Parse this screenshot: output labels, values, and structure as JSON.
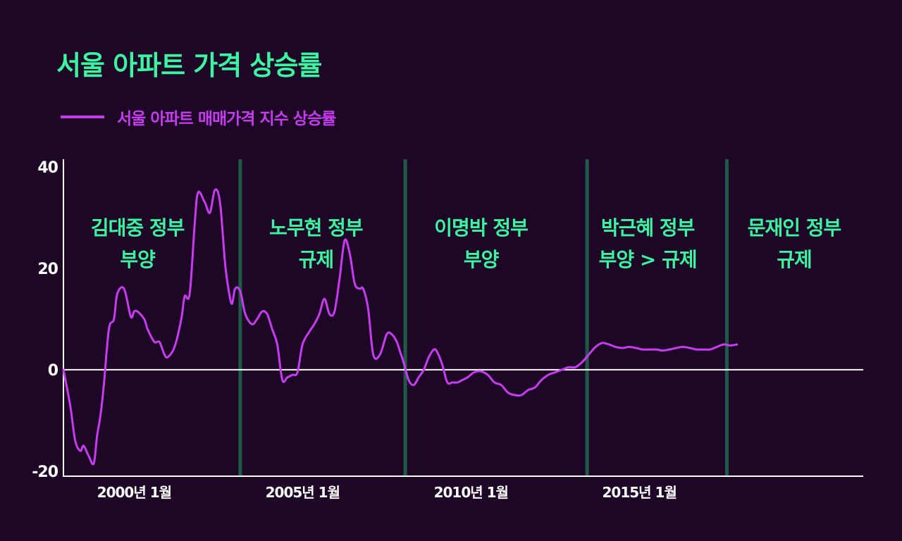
{
  "header": {
    "title": "서울 아파트 가격 상승률"
  },
  "legend": {
    "label": "서울 아파트 매매가격 지수 상승률"
  },
  "colors": {
    "background": "#1e0627",
    "accent": "#3df5a0",
    "series": "#c63df0",
    "divider": "#1f5a48",
    "axis": "#ffffff"
  },
  "chart_data": {
    "type": "line",
    "title": "서울 아파트 가격 상승률",
    "xlabel": "",
    "ylabel": "",
    "xlim": [
      1998.0,
      2021.75
    ],
    "ylim": [
      -21,
      41
    ],
    "yticks": [
      {
        "value": 40,
        "label": "40"
      },
      {
        "value": 20,
        "label": "20"
      },
      {
        "value": 0,
        "label": "0"
      },
      {
        "value": -20,
        "label": "-20"
      }
    ],
    "xticks": [
      {
        "value": 2000.1,
        "label": "2000년 1월"
      },
      {
        "value": 2005.1,
        "label": "2005년 1월"
      },
      {
        "value": 2010.1,
        "label": "2010년 1월"
      },
      {
        "value": 2015.1,
        "label": "2015년 1월"
      }
    ],
    "grid": false,
    "legend_position": "top-left",
    "dividers": [
      2003.25,
      2008.15,
      2013.55,
      2017.7
    ],
    "eras": [
      {
        "x": 2000.2,
        "line1": "김대중 정부",
        "line2": "부양"
      },
      {
        "x": 2005.5,
        "line1": "노무현 정부",
        "line2": "규제"
      },
      {
        "x": 2010.4,
        "line1": "이명박 정부",
        "line2": "부양"
      },
      {
        "x": 2015.35,
        "line1": "박근혜 정부",
        "line2": "부양 > 규제"
      },
      {
        "x": 2019.7,
        "line1": "문재인 정부",
        "line2": "규제"
      }
    ],
    "series": [
      {
        "name": "서울 아파트 매매가격 지수 상승률",
        "x": [
          1998.0,
          1998.2,
          1998.35,
          1998.5,
          1998.6,
          1998.75,
          1998.9,
          1999.0,
          1999.1,
          1999.2,
          1999.35,
          1999.5,
          1999.6,
          1999.8,
          2000.0,
          2000.1,
          2000.2,
          2000.4,
          2000.5,
          2000.7,
          2000.85,
          2001.0,
          2001.1,
          2001.3,
          2001.5,
          2001.6,
          2001.75,
          2001.9,
          2002.0,
          2002.2,
          2002.35,
          2002.5,
          2002.65,
          2002.8,
          2002.9,
          2003.0,
          2003.1,
          2003.25,
          2003.4,
          2003.6,
          2003.75,
          2003.9,
          2004.05,
          2004.2,
          2004.35,
          2004.5,
          2004.65,
          2004.8,
          2004.95,
          2005.1,
          2005.3,
          2005.45,
          2005.6,
          2005.75,
          2005.9,
          2006.05,
          2006.2,
          2006.35,
          2006.5,
          2006.65,
          2006.8,
          2006.9,
          2007.05,
          2007.2,
          2007.4,
          2007.6,
          2007.75,
          2007.9,
          2008.0,
          2008.1,
          2008.25,
          2008.4,
          2008.55,
          2008.7,
          2008.85,
          2009.0,
          2009.1,
          2009.25,
          2009.4,
          2009.55,
          2009.7,
          2009.85,
          2010.0,
          2010.2,
          2010.4,
          2010.6,
          2010.8,
          2011.0,
          2011.2,
          2011.4,
          2011.6,
          2011.8,
          2012.0,
          2012.2,
          2012.4,
          2012.6,
          2012.8,
          2013.0,
          2013.2,
          2013.4,
          2013.6,
          2013.8,
          2014.0,
          2014.2,
          2014.4,
          2014.6,
          2014.8,
          2015.0,
          2015.2,
          2015.4,
          2015.6,
          2015.8,
          2016.0,
          2016.2,
          2016.4,
          2016.6,
          2016.8,
          2017.0,
          2017.2,
          2017.4,
          2017.6,
          2017.8,
          2018.0
        ],
        "values": [
          0.0,
          -7.0,
          -14.0,
          -16.0,
          -15.0,
          -17.0,
          -18.5,
          -13.0,
          -9.0,
          -3.0,
          8.0,
          10.0,
          15.0,
          16.0,
          10.5,
          11.5,
          11.5,
          10.0,
          8.0,
          5.5,
          5.5,
          3.0,
          2.5,
          4.5,
          10.0,
          14.5,
          15.0,
          29.0,
          35.0,
          33.0,
          31.0,
          35.5,
          33.0,
          21.0,
          16.0,
          13.0,
          16.0,
          15.5,
          11.0,
          9.0,
          10.0,
          11.5,
          11.0,
          8.0,
          5.0,
          -2.0,
          -1.5,
          -1.0,
          -0.5,
          5.0,
          7.5,
          9.0,
          11.0,
          14.0,
          11.0,
          11.5,
          18.0,
          25.5,
          23.0,
          17.0,
          16.0,
          16.0,
          12.0,
          3.0,
          3.0,
          7.0,
          7.0,
          5.5,
          3.5,
          1.5,
          -2.0,
          -3.0,
          -1.5,
          0.0,
          2.5,
          4.0,
          3.5,
          1.0,
          -2.5,
          -2.5,
          -2.5,
          -2.0,
          -1.5,
          -0.5,
          -0.3,
          -1.0,
          -2.5,
          -3.0,
          -4.5,
          -5.0,
          -5.0,
          -4.0,
          -3.5,
          -2.0,
          -1.0,
          -0.5,
          0.0,
          0.5,
          0.5,
          1.5,
          3.0,
          4.5,
          5.3,
          5.0,
          4.5,
          4.3,
          4.5,
          4.3,
          4.0,
          4.0,
          4.0,
          3.8,
          4.0,
          4.3,
          4.5,
          4.3,
          4.0,
          4.0,
          4.0,
          4.5,
          5.0,
          4.8,
          5.0
        ],
        "x_override_note": "",
        "color": "#c63df0"
      }
    ]
  }
}
